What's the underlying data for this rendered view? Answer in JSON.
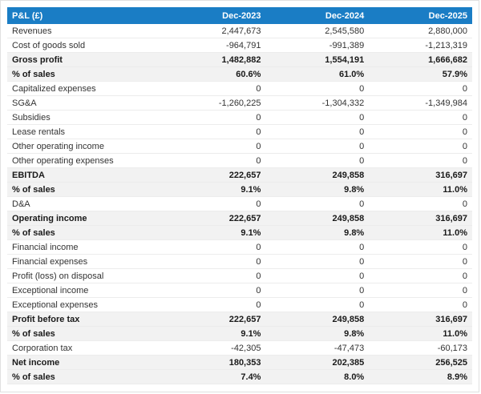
{
  "colors": {
    "header_bg": "#1a7dc5",
    "header_text": "#ffffff",
    "emphasis_row_bg": "#f2f2f2",
    "row_border": "#ececec",
    "text": "#333333",
    "emphasis_text": "#1a1a1a",
    "page_border": "#e0e0e0",
    "page_bg": "#ffffff"
  },
  "chart_data": {
    "type": "table",
    "title": "P&L (£)",
    "currency": "£",
    "columns": [
      "P&L (£)",
      "Dec-2023",
      "Dec-2024",
      "Dec-2025"
    ],
    "rows": [
      {
        "label": "Revenues",
        "values": [
          "2,447,673",
          "2,545,580",
          "2,880,000"
        ],
        "emphasis": false
      },
      {
        "label": "Cost of goods sold",
        "values": [
          "-964,791",
          "-991,389",
          "-1,213,319"
        ],
        "emphasis": false
      },
      {
        "label": "Gross profit",
        "values": [
          "1,482,882",
          "1,554,191",
          "1,666,682"
        ],
        "emphasis": true
      },
      {
        "label": "% of sales",
        "values": [
          "60.6%",
          "61.0%",
          "57.9%"
        ],
        "emphasis": true
      },
      {
        "label": "Capitalized expenses",
        "values": [
          "0",
          "0",
          "0"
        ],
        "emphasis": false
      },
      {
        "label": "SG&A",
        "values": [
          "-1,260,225",
          "-1,304,332",
          "-1,349,984"
        ],
        "emphasis": false
      },
      {
        "label": "Subsidies",
        "values": [
          "0",
          "0",
          "0"
        ],
        "emphasis": false
      },
      {
        "label": "Lease rentals",
        "values": [
          "0",
          "0",
          "0"
        ],
        "emphasis": false
      },
      {
        "label": "Other operating income",
        "values": [
          "0",
          "0",
          "0"
        ],
        "emphasis": false
      },
      {
        "label": "Other operating expenses",
        "values": [
          "0",
          "0",
          "0"
        ],
        "emphasis": false
      },
      {
        "label": "EBITDA",
        "values": [
          "222,657",
          "249,858",
          "316,697"
        ],
        "emphasis": true
      },
      {
        "label": "% of sales",
        "values": [
          "9.1%",
          "9.8%",
          "11.0%"
        ],
        "emphasis": true
      },
      {
        "label": "D&A",
        "values": [
          "0",
          "0",
          "0"
        ],
        "emphasis": false
      },
      {
        "label": "Operating income",
        "values": [
          "222,657",
          "249,858",
          "316,697"
        ],
        "emphasis": true
      },
      {
        "label": "% of sales",
        "values": [
          "9.1%",
          "9.8%",
          "11.0%"
        ],
        "emphasis": true
      },
      {
        "label": "Financial income",
        "values": [
          "0",
          "0",
          "0"
        ],
        "emphasis": false
      },
      {
        "label": "Financial expenses",
        "values": [
          "0",
          "0",
          "0"
        ],
        "emphasis": false
      },
      {
        "label": "Profit (loss) on disposal",
        "values": [
          "0",
          "0",
          "0"
        ],
        "emphasis": false
      },
      {
        "label": "Exceptional income",
        "values": [
          "0",
          "0",
          "0"
        ],
        "emphasis": false
      },
      {
        "label": "Exceptional expenses",
        "values": [
          "0",
          "0",
          "0"
        ],
        "emphasis": false
      },
      {
        "label": "Profit before tax",
        "values": [
          "222,657",
          "249,858",
          "316,697"
        ],
        "emphasis": true
      },
      {
        "label": "% of sales",
        "values": [
          "9.1%",
          "9.8%",
          "11.0%"
        ],
        "emphasis": true
      },
      {
        "label": "Corporation tax",
        "values": [
          "-42,305",
          "-47,473",
          "-60,173"
        ],
        "emphasis": false
      },
      {
        "label": "Net income",
        "values": [
          "180,353",
          "202,385",
          "256,525"
        ],
        "emphasis": true
      },
      {
        "label": "% of sales",
        "values": [
          "7.4%",
          "8.0%",
          "8.9%"
        ],
        "emphasis": true
      }
    ]
  }
}
